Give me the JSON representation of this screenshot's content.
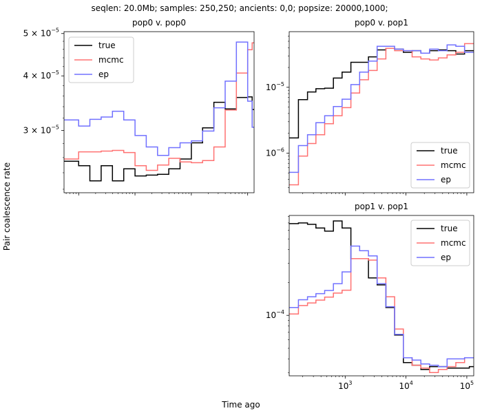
{
  "figure": {
    "suptitle": "seqlen: 20.0Mb; samples: 250,250; ancients: 0,0; popsize: 20000,1000;",
    "ylabel": "Pair coalescence rate",
    "xlabel": "Time ago"
  },
  "colors": {
    "true": "#000000",
    "mcmc": "#ff7070",
    "ep": "#7070ff"
  },
  "chart_data": [
    {
      "id": "pop0-pop0",
      "type": "line",
      "step": "post",
      "title": "pop0 v. pop0",
      "xscale": "log",
      "yscale": "log",
      "xlim": [
        55,
        130000
      ],
      "ylim": [
        2.16e-05,
        5.05e-05
      ],
      "grid": false,
      "legend": "upper left",
      "x": [
        55,
        100,
        158,
        251,
        398,
        631,
        1000,
        1585,
        2512,
        3981,
        6310,
        10000,
        15849,
        25119,
        39811,
        63096,
        100000,
        120000
      ],
      "series": [
        {
          "name": "true",
          "values": [
            2.55e-05,
            2.49e-05,
            2.3e-05,
            2.49e-05,
            2.3e-05,
            2.45e-05,
            2.36e-05,
            2.37e-05,
            2.38e-05,
            2.45e-05,
            2.58e-05,
            2.81e-05,
            3.04e-05,
            3.48e-05,
            3.36e-05,
            3.57e-05,
            3.58e-05,
            3.35e-05
          ]
        },
        {
          "name": "mcmc",
          "values": [
            2.58e-05,
            2.68e-05,
            2.68e-05,
            2.69e-05,
            2.7e-05,
            2.67e-05,
            2.49e-05,
            2.43e-05,
            2.5e-05,
            2.59e-05,
            2.54e-05,
            2.53e-05,
            2.56e-05,
            2.75e-05,
            3.34e-05,
            4.06e-05,
            4.59e-05,
            4.76e-05
          ]
        },
        {
          "name": "ep",
          "values": [
            3.17e-05,
            3.07e-05,
            3.18e-05,
            3.22e-05,
            3.32e-05,
            3.17e-05,
            2.92e-05,
            2.75e-05,
            2.63e-05,
            2.74e-05,
            2.81e-05,
            2.84e-05,
            2.99e-05,
            3.38e-05,
            3.89e-05,
            4.78e-05,
            3.5e-05,
            3.05e-05
          ]
        }
      ]
    },
    {
      "id": "pop0-pop1",
      "type": "line",
      "step": "post",
      "title": "pop0 v. pop1",
      "xscale": "log",
      "yscale": "log",
      "xlim": [
        120,
        130000
      ],
      "ylim": [
        2.5e-07,
        7e-05
      ],
      "grid": false,
      "legend": "lower right",
      "x": [
        120,
        170,
        240,
        330,
        460,
        640,
        890,
        1240,
        1730,
        2410,
        3350,
        4670,
        6500,
        9050,
        12600,
        17550,
        24430,
        34000,
        47400,
        66000,
        91800,
        110000
      ],
      "series": [
        {
          "name": "true",
          "values": [
            1.7e-06,
            6.5e-06,
            8.5e-06,
            9.5e-06,
            9.7e-06,
            1.38e-05,
            1.7e-05,
            2.4e-05,
            2.4e-05,
            2.9e-05,
            3.7e-05,
            3.9e-05,
            3.8e-05,
            3.4e-05,
            3.6e-05,
            3.3e-05,
            3.6e-05,
            3.7e-05,
            3.6e-05,
            3.2e-05,
            3.6e-05,
            3.6e-05
          ]
        },
        {
          "name": "mcmc",
          "values": [
            3.3e-07,
            9e-07,
            1.4e-06,
            1.9e-06,
            2.8e-06,
            3.7e-06,
            4.9e-06,
            8.2e-06,
            1.3e-05,
            1.8e-05,
            2.7e-05,
            3.9e-05,
            3.6e-05,
            3.6e-05,
            2.9e-05,
            2.7e-05,
            2.6e-05,
            2.8e-05,
            3.1e-05,
            3.4e-05,
            4.6e-05,
            4.6e-05
          ]
        },
        {
          "name": "ep",
          "values": [
            5.1e-07,
            1.3e-06,
            1.9e-06,
            2.9e-06,
            3.7e-06,
            5.1e-06,
            6.6e-06,
            1.1e-05,
            1.7e-05,
            2.5e-05,
            4.2e-05,
            4.2e-05,
            3.8e-05,
            3.6e-05,
            3.6e-05,
            3.3e-05,
            3.8e-05,
            3.6e-05,
            4.4e-05,
            4.2e-05,
            3.4e-05,
            3.4e-05
          ]
        }
      ]
    },
    {
      "id": "pop1-pop1",
      "type": "line",
      "step": "post",
      "title": "pop1 v. pop1",
      "xscale": "log",
      "yscale": "log",
      "xlim": [
        120,
        130000
      ],
      "ylim": [
        2.8e-05,
        0.00082
      ],
      "grid": false,
      "legend": "upper right",
      "x": [
        120,
        170,
        240,
        330,
        460,
        640,
        890,
        1240,
        1730,
        2410,
        3350,
        4670,
        6500,
        9050,
        12600,
        17550,
        24430,
        34000,
        47400,
        66000,
        91800,
        110000
      ],
      "series": [
        {
          "name": "true",
          "values": [
            0.00069,
            0.0007,
            0.00068,
            0.00063,
            0.00059,
            0.00073,
            0.00063,
            0.00033,
            0.00033,
            0.00022,
            0.00019,
            0.000118,
            6.6e-05,
            3.7e-05,
            3.5e-05,
            3.2e-05,
            3.4e-05,
            3.4e-05,
            3.3e-05,
            3.3e-05,
            3.3e-05,
            3.4e-05
          ]
        },
        {
          "name": "mcmc",
          "values": [
            0.000103,
            0.000123,
            0.00013,
            0.000138,
            0.000147,
            0.00016,
            0.00017,
            0.00033,
            0.00033,
            0.00032,
            0.00022,
            0.000148,
            7.5e-05,
            4.1e-05,
            3.5e-05,
            3.3e-05,
            3e-05,
            3.2e-05,
            3.4e-05,
            3.7e-05,
            4.1e-05,
            4.1e-05
          ]
        },
        {
          "name": "ep",
          "values": [
            0.000118,
            0.000139,
            0.000148,
            0.000158,
            0.000169,
            0.000195,
            0.00025,
            0.00043,
            0.00039,
            0.00035,
            0.000195,
            0.00012,
            6.7e-05,
            4.1e-05,
            3.9e-05,
            3.6e-05,
            3.5e-05,
            3.4e-05,
            4e-05,
            4e-05,
            4.1e-05,
            4.1e-05
          ]
        }
      ]
    }
  ]
}
